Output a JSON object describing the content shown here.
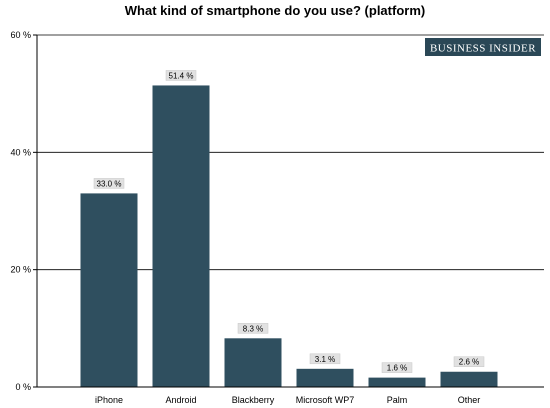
{
  "chart_data": {
    "type": "bar",
    "title": "What kind of smartphone do you use? (platform)",
    "categories": [
      "iPhone",
      "Android",
      "Blackberry",
      "Microsoft WP7",
      "Palm",
      "Other"
    ],
    "values": [
      33.0,
      51.4,
      8.3,
      3.1,
      1.6,
      2.6
    ],
    "data_labels": [
      "33.0 %",
      "51.4 %",
      "8.3 %",
      "3.1 %",
      "1.6 %",
      "2.6 %"
    ],
    "ylim": [
      0,
      60
    ],
    "yticks": [
      0,
      20,
      40,
      60
    ],
    "ytick_labels": [
      "0 %",
      "20 %",
      "40 %",
      "60 %"
    ],
    "xlabel": "",
    "ylabel": "",
    "grid": true,
    "bar_color": "#2f4f5f"
  },
  "logo": {
    "text": "BUSINESS INSIDER",
    "color": "#2a4756"
  }
}
